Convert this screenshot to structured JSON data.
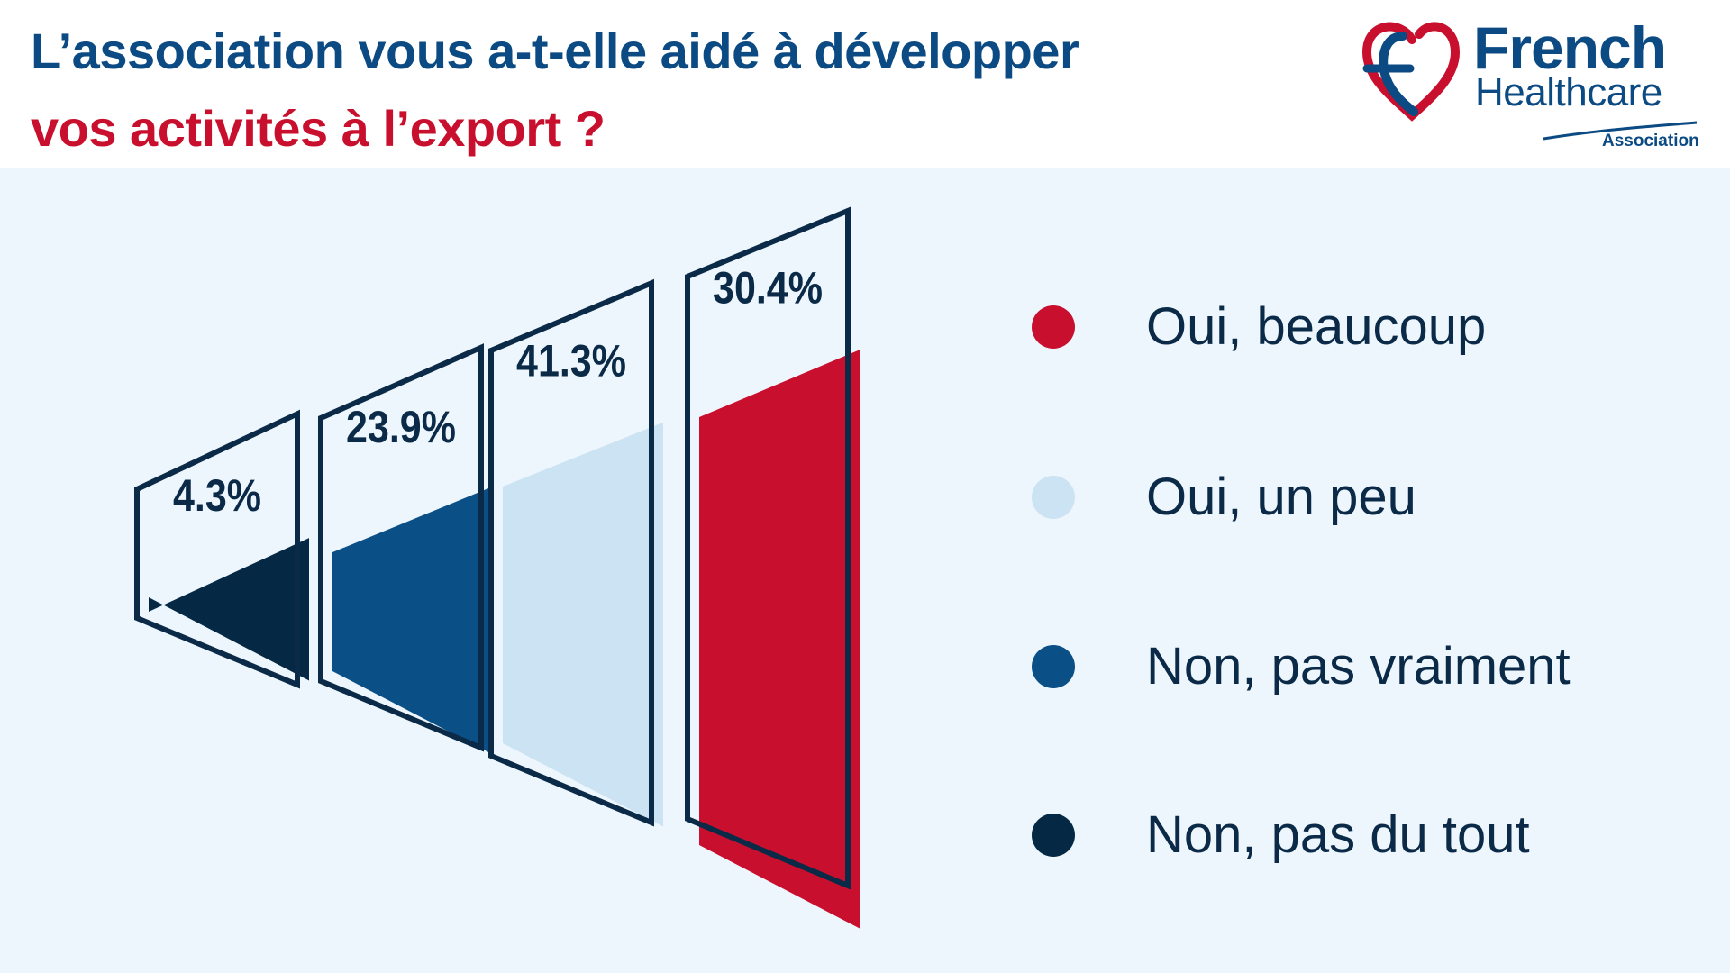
{
  "title": {
    "line1": "L’association vous a-t-elle aidé à développer",
    "line2": "vos activités à l’export ?"
  },
  "logo": {
    "word1": "French",
    "word2": "Healthcare",
    "word3": "Association"
  },
  "colors": {
    "red": "#c8102e",
    "light_blue": "#cce3f3",
    "mid_blue": "#0b4f87",
    "navy": "#052945",
    "background": "#eef6fd"
  },
  "chart_data": {
    "type": "bar",
    "categories": [
      "Non, pas du tout",
      "Non, pas vraiment",
      "Oui, un peu",
      "Oui, beaucoup"
    ],
    "values": [
      4.3,
      23.9,
      41.3,
      30.4
    ],
    "value_labels": [
      "4.3%",
      "23.9%",
      "41.3%",
      "30.4%"
    ],
    "unit": "%",
    "colors": [
      "#052945",
      "#0b4f87",
      "#cce3f3",
      "#c8102e"
    ],
    "legend": {
      "placement": "right",
      "items": [
        {
          "label": "Oui, beaucoup",
          "color": "#c8102e"
        },
        {
          "label": "Oui, un peu",
          "color": "#cce3f3"
        },
        {
          "label": "Non, pas vraiment",
          "color": "#0b4f87"
        },
        {
          "label": "Non, pas du tout",
          "color": "#052945"
        }
      ]
    }
  }
}
